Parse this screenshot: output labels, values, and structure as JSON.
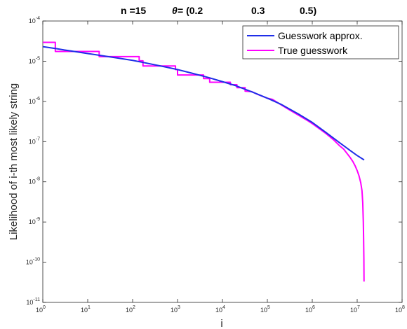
{
  "chart_data": {
    "type": "line",
    "title": {
      "n_part": "n =15",
      "theta_symbol": "θ",
      "theta_rest": " = (0.2",
      "theta_2": "0.3",
      "theta_3": "0.5)"
    },
    "xlabel": "i",
    "ylabel": "Likelihood of i-th most likely string",
    "x_scale": "log",
    "y_scale": "log",
    "xlim": [
      1,
      100000000
    ],
    "ylim": [
      1e-11,
      0.0001
    ],
    "x_ticks": [
      {
        "value": 1,
        "base": "10",
        "exp": "0"
      },
      {
        "value": 10,
        "base": "10",
        "exp": "1"
      },
      {
        "value": 100,
        "base": "10",
        "exp": "2"
      },
      {
        "value": 1000,
        "base": "10",
        "exp": "3"
      },
      {
        "value": 10000,
        "base": "10",
        "exp": "4"
      },
      {
        "value": 100000,
        "base": "10",
        "exp": "5"
      },
      {
        "value": 1000000,
        "base": "10",
        "exp": "6"
      },
      {
        "value": 10000000,
        "base": "10",
        "exp": "7"
      },
      {
        "value": 100000000,
        "base": "10",
        "exp": "8"
      }
    ],
    "y_ticks": [
      {
        "value": 1e-11,
        "base": "10",
        "exp": "-11"
      },
      {
        "value": 1e-10,
        "base": "10",
        "exp": "-10"
      },
      {
        "value": 1e-09,
        "base": "10",
        "exp": "-9"
      },
      {
        "value": 1e-08,
        "base": "10",
        "exp": "-8"
      },
      {
        "value": 1e-07,
        "base": "10",
        "exp": "-7"
      },
      {
        "value": 1e-06,
        "base": "10",
        "exp": "-6"
      },
      {
        "value": 1e-05,
        "base": "10",
        "exp": "-5"
      },
      {
        "value": 0.0001,
        "base": "10",
        "exp": "-4"
      }
    ],
    "legend_position": "top-right",
    "grid": false,
    "series": [
      {
        "name": "Guesswork approx.",
        "color": "#1f2ee8",
        "points": [
          [
            1,
            2.3e-05
          ],
          [
            2,
            2.05e-05
          ],
          [
            3,
            1.9e-05
          ],
          [
            5,
            1.75e-05
          ],
          [
            10,
            1.55e-05
          ],
          [
            20,
            1.38e-05
          ],
          [
            50,
            1.18e-05
          ],
          [
            100,
            1.05e-05
          ],
          [
            200,
            9e-06
          ],
          [
            500,
            7.3e-06
          ],
          [
            1000,
            6.2e-06
          ],
          [
            2000,
            5.1e-06
          ],
          [
            5000,
            3.9e-06
          ],
          [
            10000,
            3.1e-06
          ],
          [
            20000,
            2.45e-06
          ],
          [
            50000,
            1.65e-06
          ],
          [
            100000,
            1.2e-06
          ],
          [
            200000,
            8.5e-07
          ],
          [
            500000,
            4.8e-07
          ],
          [
            1000000,
            3e-07
          ],
          [
            2000000,
            1.7e-07
          ],
          [
            4000000,
            9.5e-08
          ],
          [
            7000000,
            6e-08
          ],
          [
            10000000,
            4.5e-08
          ],
          [
            14300000,
            3.5e-08
          ]
        ]
      },
      {
        "name": "True guesswork",
        "color": "#ff00ff",
        "points": [
          [
            1,
            2.95e-05
          ],
          [
            1.9,
            2.95e-05
          ],
          [
            1.9,
            1.75e-05
          ],
          [
            18,
            1.75e-05
          ],
          [
            18,
            1.3e-05
          ],
          [
            140,
            1.3e-05
          ],
          [
            140,
            1.02e-05
          ],
          [
            170,
            1.02e-05
          ],
          [
            170,
            7.6e-06
          ],
          [
            900,
            7.6e-06
          ],
          [
            900,
            6.2e-06
          ],
          [
            1000,
            6.2e-06
          ],
          [
            1000,
            4.55e-06
          ],
          [
            3800,
            4.55e-06
          ],
          [
            3800,
            3.7e-06
          ],
          [
            5200,
            3.7e-06
          ],
          [
            5200,
            3e-06
          ],
          [
            15000,
            3e-06
          ],
          [
            15000,
            2.6e-06
          ],
          [
            21000,
            2.6e-06
          ],
          [
            21000,
            2.2e-06
          ],
          [
            32000,
            2.2e-06
          ],
          [
            32000,
            1.8e-06
          ],
          [
            45000,
            1.75e-06
          ],
          [
            60000,
            1.5e-06
          ],
          [
            100000,
            1.2e-06
          ],
          [
            130000,
            1.12e-06
          ],
          [
            200000,
            8.3e-07
          ],
          [
            300000,
            6.3e-07
          ],
          [
            500000,
            4.5e-07
          ],
          [
            800000,
            3.3e-07
          ],
          [
            1000000,
            2.8e-07
          ],
          [
            2000000,
            1.6e-07
          ],
          [
            3000000,
            1.1e-07
          ],
          [
            4000000,
            8e-08
          ],
          [
            5000000,
            6.5e-08
          ],
          [
            6000000,
            5e-08
          ],
          [
            7000000,
            4e-08
          ],
          [
            8000000,
            3.2e-08
          ],
          [
            9000000,
            2.5e-08
          ],
          [
            10000000,
            1.9e-08
          ],
          [
            11000000,
            1.4e-08
          ],
          [
            12000000,
            9.5e-09
          ],
          [
            12800000,
            6e-09
          ],
          [
            13300000,
            3e-09
          ],
          [
            13700000,
            1e-09
          ],
          [
            13900000,
            4e-10
          ],
          [
            14100000,
            1.2e-10
          ],
          [
            14200000,
            3.3e-11
          ]
        ]
      }
    ]
  }
}
